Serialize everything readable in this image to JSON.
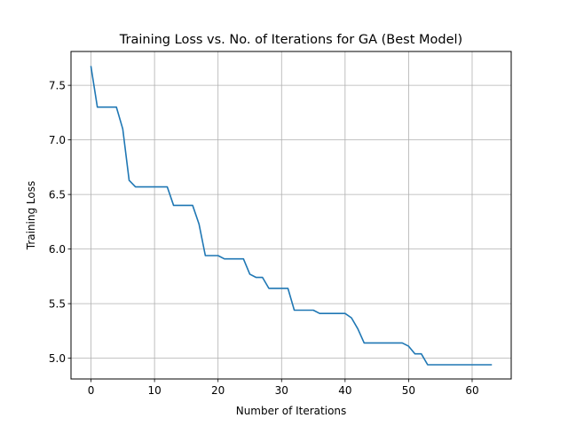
{
  "chart_data": {
    "type": "line",
    "title": "Training Loss vs. No. of Iterations for GA (Best Model)",
    "xlabel": "Number of Iterations",
    "ylabel": "Training Loss",
    "xlim": [
      -3.15,
      66.15
    ],
    "ylim": [
      4.81,
      7.81
    ],
    "xticks": [
      0,
      10,
      20,
      30,
      40,
      50,
      60
    ],
    "yticks": [
      5.0,
      5.5,
      6.0,
      6.5,
      7.0,
      7.5
    ],
    "xtick_labels": [
      "0",
      "10",
      "20",
      "30",
      "40",
      "50",
      "60"
    ],
    "ytick_labels": [
      "5.0",
      "5.5",
      "6.0",
      "6.5",
      "7.0",
      "7.5"
    ],
    "grid": true,
    "line_color": "#1f77b4",
    "series": [
      {
        "x": [
          0,
          1,
          2,
          3,
          4,
          5,
          6,
          7,
          8,
          9,
          10,
          11,
          12,
          13,
          14,
          15,
          16,
          17,
          18,
          19,
          20,
          21,
          22,
          23,
          24,
          25,
          26,
          27,
          28,
          29,
          30,
          31,
          32,
          33,
          34,
          35,
          36,
          37,
          38,
          39,
          40,
          41,
          42,
          43,
          44,
          45,
          46,
          47,
          48,
          49,
          50,
          51,
          52,
          53,
          54,
          55,
          56,
          57,
          58,
          59,
          60,
          61,
          62,
          63
        ],
        "y": [
          7.67,
          7.3,
          7.3,
          7.3,
          7.3,
          7.1,
          6.63,
          6.57,
          6.57,
          6.57,
          6.57,
          6.57,
          6.57,
          6.4,
          6.4,
          6.4,
          6.4,
          6.23,
          5.94,
          5.94,
          5.94,
          5.91,
          5.91,
          5.91,
          5.91,
          5.77,
          5.74,
          5.74,
          5.64,
          5.64,
          5.64,
          5.64,
          5.44,
          5.44,
          5.44,
          5.44,
          5.41,
          5.41,
          5.41,
          5.41,
          5.41,
          5.37,
          5.27,
          5.14,
          5.14,
          5.14,
          5.14,
          5.14,
          5.14,
          5.14,
          5.11,
          5.04,
          5.04,
          4.94,
          4.94,
          4.94,
          4.94,
          4.94,
          4.94,
          4.94,
          4.94,
          4.94,
          4.94,
          4.94
        ]
      }
    ]
  }
}
